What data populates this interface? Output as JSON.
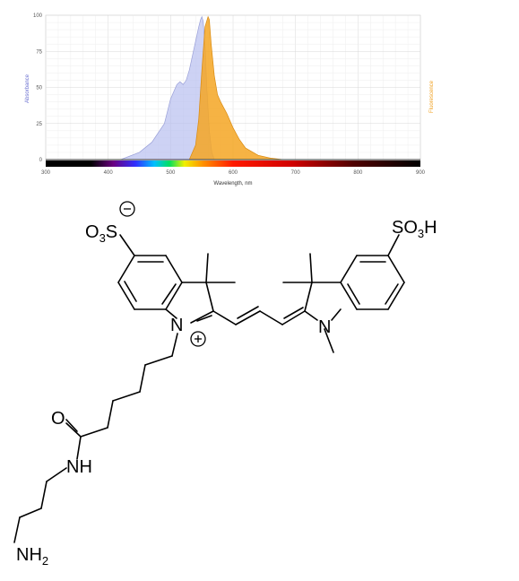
{
  "chart_data": {
    "type": "area",
    "title": "",
    "xlabel": "Wavelength, nm",
    "ylabel": "Absorbance",
    "y2label": "Fluorescence",
    "xlim": [
      300,
      900
    ],
    "ylim": [
      0,
      100
    ],
    "x_ticks": [
      "300",
      "400",
      "500",
      "600",
      "700",
      "800",
      "900"
    ],
    "y_ticks": [
      "0",
      "25",
      "50",
      "75",
      "100"
    ],
    "grid": true,
    "colors": {
      "absorbance": "#b8bff0",
      "fluorescence": "#f5a623"
    },
    "series": [
      {
        "name": "Absorbance",
        "x": [
          420,
          450,
          470,
          490,
          500,
          510,
          515,
          520,
          525,
          530,
          535,
          540,
          545,
          548,
          550,
          552,
          555,
          558,
          562,
          566,
          570
        ],
        "y": [
          0,
          5,
          12,
          25,
          42,
          52,
          54,
          52,
          55,
          62,
          72,
          82,
          92,
          97,
          99,
          96,
          80,
          50,
          20,
          5,
          0
        ]
      },
      {
        "name": "Fluorescence",
        "x": [
          530,
          540,
          545,
          550,
          555,
          560,
          562,
          565,
          570,
          575,
          580,
          590,
          600,
          610,
          620,
          640,
          660,
          680
        ],
        "y": [
          0,
          10,
          28,
          62,
          92,
          99,
          97,
          80,
          58,
          45,
          40,
          32,
          22,
          14,
          8,
          3,
          1,
          0
        ]
      }
    ]
  },
  "structure": {
    "atoms": {
      "o3s": "O3S",
      "sulfonate_left": "O",
      "s_left": "S",
      "s_sub": "3",
      "minus": "−",
      "n_plus": "N",
      "plus": "+",
      "n_right": "N",
      "so3h": "SO",
      "so3h_sub": "3",
      "so3h_h": "H",
      "o_carbonyl": "O",
      "nh": "NH",
      "nh2": "NH",
      "nh2_sub": "2"
    }
  }
}
